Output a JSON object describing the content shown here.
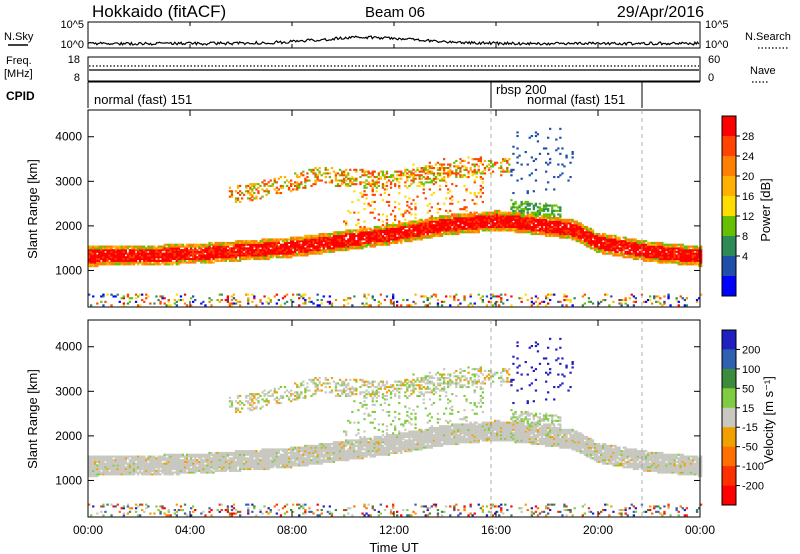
{
  "header": {
    "title": "Hokkaido (fitACF)",
    "beam": "Beam 06",
    "date": "29/Apr/2016"
  },
  "labels": {
    "nsky": "N.Sky",
    "freq_line1": "Freq.",
    "freq_line2": "[MHz]",
    "cpid": "CPID",
    "nsearch": "N.Search",
    "nave": "Nave",
    "xlabel": "Time UT",
    "ylabel": "Slant Range [km]",
    "power_label": "Power [dB]",
    "velocity_label": "Velocity [m s⁻¹]"
  },
  "header_axes": {
    "noise_left_ticks": [
      "10^5",
      "10^0"
    ],
    "noise_right_ticks": [
      "10^5",
      "10^0"
    ],
    "freq_left_ticks": [
      "18",
      "8"
    ],
    "freq_right_ticks": [
      "60",
      "0"
    ]
  },
  "cpid": {
    "segments": [
      {
        "label": "normal (fast) 151",
        "start_hr": 0,
        "end_hr": 16
      },
      {
        "label": "rbsp 200",
        "start_hr": 16,
        "end_hr": 22
      },
      {
        "label": "normal (fast) 151",
        "start_hr": 16,
        "end_hr": 22
      }
    ],
    "boundaries_hr": [
      16,
      22
    ]
  },
  "chart_data": [
    {
      "type": "heatmap",
      "name": "Power",
      "x_range_hr": [
        0,
        24
      ],
      "ylim": [
        180,
        4600
      ],
      "xticks": [
        "00:00",
        "04:00",
        "08:00",
        "12:00",
        "16:00",
        "20:00",
        "00:00"
      ],
      "xtick_values_hr": [
        0,
        4,
        8,
        12,
        16,
        20,
        24
      ],
      "yticks": [
        "1000",
        "2000",
        "3000",
        "4000"
      ],
      "ytick_values": [
        1000,
        2000,
        3000,
        4000
      ],
      "colorbar": {
        "ticks": [
          "28",
          "24",
          "20",
          "16",
          "12",
          "8",
          "4"
        ],
        "colors": [
          "#ff0000",
          "#ff4400",
          "#ff7f00",
          "#ffb000",
          "#ffdd00",
          "#66c000",
          "#2e8b57",
          "#1f4fa8",
          "#0000ff"
        ]
      },
      "bands": [
        {
          "desc": "main echo band",
          "points_hr_km": [
            [
              0,
              1300
            ],
            [
              4,
              1350
            ],
            [
              8,
              1500
            ],
            [
              12,
              1800
            ],
            [
              14,
              2000
            ],
            [
              16,
              2100
            ],
            [
              17,
              2050
            ],
            [
              19,
              1900
            ],
            [
              20,
              1600
            ],
            [
              22,
              1400
            ],
            [
              24,
              1300
            ]
          ],
          "thickness_km": 450,
          "level_db": 27
        },
        {
          "desc": "upper patchy echoes",
          "points_hr_km": [
            [
              6,
              2700
            ],
            [
              9,
              3100
            ],
            [
              12,
              3000
            ],
            [
              15,
              3300
            ]
          ],
          "thickness_km": 400,
          "level_db": 14
        }
      ]
    },
    {
      "type": "heatmap",
      "name": "Velocity",
      "x_range_hr": [
        0,
        24
      ],
      "ylim": [
        180,
        4600
      ],
      "xticks": [
        "00:00",
        "04:00",
        "08:00",
        "12:00",
        "16:00",
        "20:00",
        "00:00"
      ],
      "xtick_values_hr": [
        0,
        4,
        8,
        12,
        16,
        20,
        24
      ],
      "yticks": [
        "1000",
        "2000",
        "3000",
        "4000"
      ],
      "ytick_values": [
        1000,
        2000,
        3000,
        4000
      ],
      "colorbar": {
        "ticks": [
          "200",
          "100",
          "50",
          "15",
          "-15",
          "-50",
          "-100",
          "-200"
        ],
        "colors": [
          "#2020c0",
          "#3060b0",
          "#3c8c3c",
          "#80cc40",
          "#c8c8c0",
          "#f0a000",
          "#ff7000",
          "#ff3000",
          "#ff0000"
        ]
      }
    }
  ]
}
